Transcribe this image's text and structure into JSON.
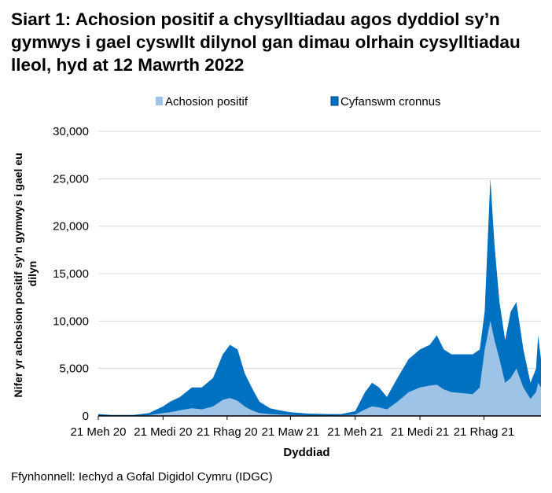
{
  "title": "Siart 1: Achosion positif a chysylltiadau agos dyddiol sy’n gymwys i gael cyswllt dilynol gan dimau olrhain cysylltiadau lleol, hyd at 12 Mawrth 2022",
  "source": "Ffynhonnell: Iechyd a Gofal Digidol Cymru (IDGC)",
  "chart_data": {
    "type": "area",
    "stacked": false,
    "xlabel": "Dyddiad",
    "ylabel": "Nifer yr achosion positif sy’n gymwys i gael eu dilyn",
    "ylim": [
      0,
      30000
    ],
    "yticks": [
      0,
      5000,
      10000,
      15000,
      20000,
      25000,
      30000
    ],
    "ytick_labels": [
      "0",
      "5,000",
      "10,000",
      "15,000",
      "20,000",
      "25,000",
      "30,000"
    ],
    "xlim": [
      "2020-06-21",
      "2022-03-12"
    ],
    "xticks": [
      "2020-06-21",
      "2020-09-21",
      "2020-12-21",
      "2021-03-21",
      "2021-06-21",
      "2021-09-21",
      "2021-12-21"
    ],
    "xtick_labels": [
      "21 Meh 20",
      "21 Medi 20",
      "21 Rhag 20",
      "21 Maw 21",
      "21 Meh 21",
      "21 Medi 21",
      "21 Rhag 21"
    ],
    "grid": "horizontal",
    "legend_position": "top",
    "dates": [
      "2020-06-21",
      "2020-07-10",
      "2020-08-10",
      "2020-09-01",
      "2020-09-21",
      "2020-10-01",
      "2020-10-15",
      "2020-11-01",
      "2020-11-15",
      "2020-12-01",
      "2020-12-15",
      "2020-12-25",
      "2021-01-05",
      "2021-01-15",
      "2021-01-25",
      "2021-02-05",
      "2021-02-20",
      "2021-03-05",
      "2021-03-21",
      "2021-04-15",
      "2021-05-15",
      "2021-06-01",
      "2021-06-21",
      "2021-07-05",
      "2021-07-15",
      "2021-07-25",
      "2021-08-05",
      "2021-08-20",
      "2021-09-05",
      "2021-09-21",
      "2021-10-05",
      "2021-10-15",
      "2021-10-25",
      "2021-11-05",
      "2021-11-20",
      "2021-12-05",
      "2021-12-15",
      "2021-12-22",
      "2021-12-30",
      "2022-01-05",
      "2022-01-12",
      "2022-01-20",
      "2022-01-28",
      "2022-02-05",
      "2022-02-15",
      "2022-02-25",
      "2022-03-05",
      "2022-03-08",
      "2022-03-12"
    ],
    "series": [
      {
        "name": "Cyfanswm cronnus",
        "color": "#0070c0",
        "values": [
          200,
          100,
          100,
          300,
          1000,
          1500,
          2000,
          3000,
          3000,
          4000,
          6500,
          7500,
          7000,
          4500,
          3000,
          1500,
          800,
          600,
          400,
          250,
          200,
          200,
          500,
          2500,
          3500,
          3000,
          2000,
          4000,
          6000,
          7000,
          7500,
          8500,
          7000,
          6500,
          6500,
          6500,
          7000,
          11000,
          25000,
          18000,
          12000,
          8000,
          11000,
          12000,
          7000,
          3500,
          5000,
          8500,
          6000
        ]
      },
      {
        "name": "Achosion positif",
        "color": "#9dc3e6",
        "values": [
          50,
          20,
          30,
          80,
          300,
          400,
          600,
          800,
          700,
          1000,
          1700,
          1900,
          1600,
          1000,
          600,
          300,
          200,
          150,
          100,
          60,
          50,
          60,
          150,
          700,
          1000,
          900,
          700,
          1500,
          2500,
          3000,
          3200,
          3300,
          2800,
          2500,
          2400,
          2300,
          3000,
          7000,
          10000,
          8000,
          6000,
          3500,
          4000,
          5000,
          3000,
          1800,
          2500,
          3500,
          3000
        ]
      }
    ]
  }
}
